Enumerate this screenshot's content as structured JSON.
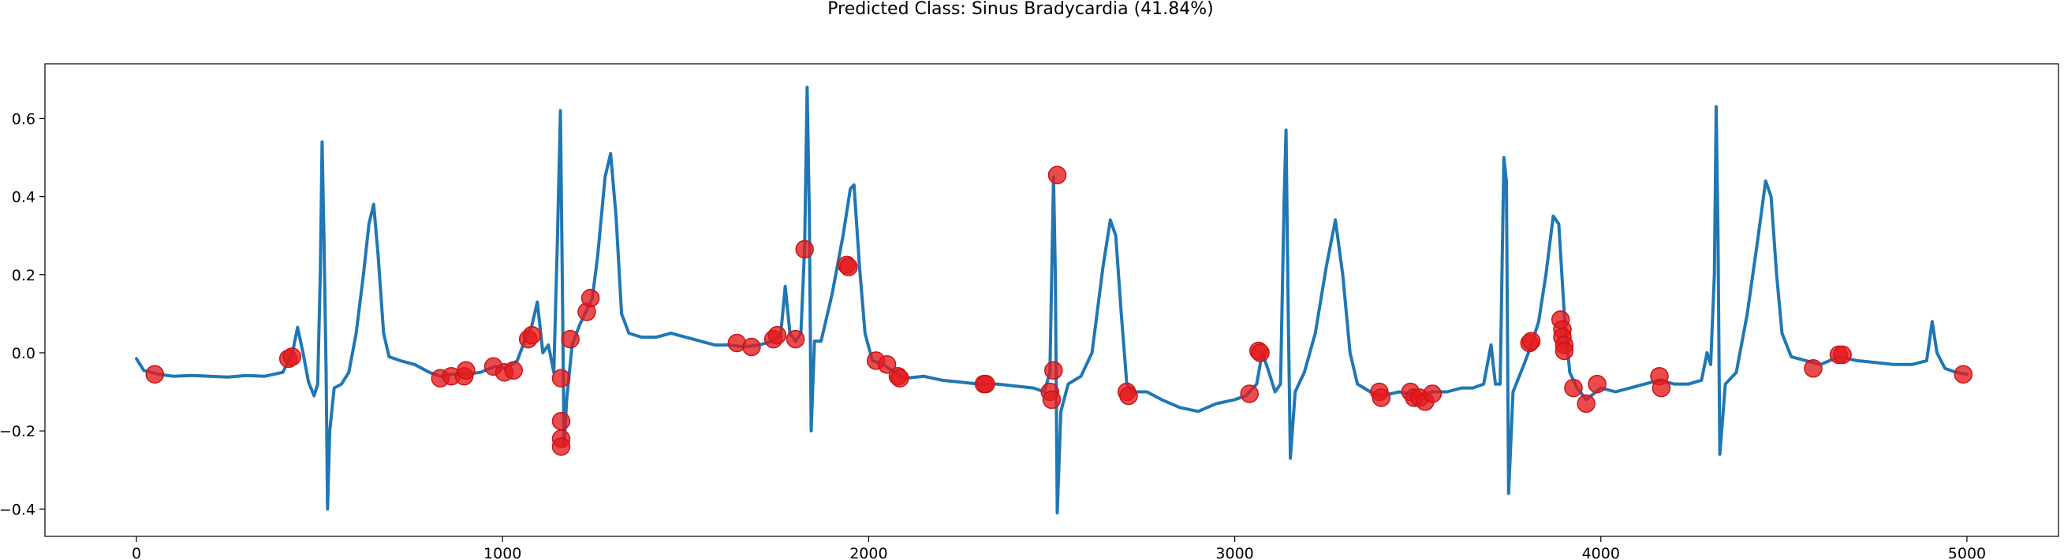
{
  "chart_data": {
    "type": "line",
    "title": "Predicted Class: Sinus Bradycardia (41.84%)",
    "xlabel": "",
    "ylabel": "",
    "xlim": [
      -250,
      5250
    ],
    "ylim": [
      -0.47,
      0.74
    ],
    "x_ticks": [
      0,
      1000,
      2000,
      3000,
      4000,
      5000
    ],
    "y_ticks": [
      -0.4,
      -0.2,
      0.0,
      0.2,
      0.4,
      0.6
    ],
    "grid": false,
    "series": [
      {
        "style": "line",
        "color": "#1f77b4",
        "points": [
          [
            0,
            -0.015
          ],
          [
            20,
            -0.045
          ],
          [
            60,
            -0.055
          ],
          [
            100,
            -0.06
          ],
          [
            150,
            -0.058
          ],
          [
            200,
            -0.06
          ],
          [
            250,
            -0.062
          ],
          [
            300,
            -0.058
          ],
          [
            350,
            -0.06
          ],
          [
            400,
            -0.05
          ],
          [
            410,
            -0.03
          ],
          [
            425,
            -0.005
          ],
          [
            440,
            0.065
          ],
          [
            455,
            0.0
          ],
          [
            470,
            -0.075
          ],
          [
            485,
            -0.11
          ],
          [
            495,
            -0.08
          ],
          [
            502,
            0.2
          ],
          [
            507,
            0.54
          ],
          [
            512,
            0.3
          ],
          [
            518,
            -0.05
          ],
          [
            522,
            -0.4
          ],
          [
            528,
            -0.2
          ],
          [
            540,
            -0.09
          ],
          [
            560,
            -0.08
          ],
          [
            580,
            -0.05
          ],
          [
            600,
            0.05
          ],
          [
            620,
            0.2
          ],
          [
            635,
            0.33
          ],
          [
            648,
            0.38
          ],
          [
            660,
            0.25
          ],
          [
            675,
            0.05
          ],
          [
            690,
            -0.01
          ],
          [
            720,
            -0.02
          ],
          [
            760,
            -0.03
          ],
          [
            800,
            -0.05
          ],
          [
            830,
            -0.06
          ],
          [
            860,
            -0.055
          ],
          [
            900,
            -0.055
          ],
          [
            940,
            -0.05
          ],
          [
            980,
            -0.035
          ],
          [
            1010,
            -0.04
          ],
          [
            1040,
            -0.02
          ],
          [
            1060,
            0.03
          ],
          [
            1080,
            0.07
          ],
          [
            1095,
            0.13
          ],
          [
            1110,
            0.0
          ],
          [
            1125,
            0.02
          ],
          [
            1140,
            -0.05
          ],
          [
            1150,
            0.3
          ],
          [
            1158,
            0.62
          ],
          [
            1163,
            0.2
          ],
          [
            1168,
            -0.24
          ],
          [
            1175,
            -0.12
          ],
          [
            1190,
            0.02
          ],
          [
            1210,
            0.07
          ],
          [
            1230,
            0.11
          ],
          [
            1245,
            0.14
          ],
          [
            1260,
            0.25
          ],
          [
            1280,
            0.45
          ],
          [
            1295,
            0.51
          ],
          [
            1310,
            0.35
          ],
          [
            1325,
            0.1
          ],
          [
            1345,
            0.05
          ],
          [
            1380,
            0.04
          ],
          [
            1420,
            0.04
          ],
          [
            1460,
            0.05
          ],
          [
            1500,
            0.04
          ],
          [
            1540,
            0.03
          ],
          [
            1580,
            0.02
          ],
          [
            1620,
            0.02
          ],
          [
            1660,
            0.015
          ],
          [
            1700,
            0.02
          ],
          [
            1740,
            0.03
          ],
          [
            1760,
            0.05
          ],
          [
            1772,
            0.17
          ],
          [
            1785,
            0.05
          ],
          [
            1800,
            0.03
          ],
          [
            1815,
            0.05
          ],
          [
            1825,
            0.27
          ],
          [
            1832,
            0.68
          ],
          [
            1838,
            0.35
          ],
          [
            1843,
            -0.2
          ],
          [
            1852,
            0.03
          ],
          [
            1870,
            0.03
          ],
          [
            1900,
            0.15
          ],
          [
            1930,
            0.3
          ],
          [
            1950,
            0.42
          ],
          [
            1960,
            0.43
          ],
          [
            1975,
            0.22
          ],
          [
            1990,
            0.05
          ],
          [
            2010,
            -0.02
          ],
          [
            2040,
            -0.03
          ],
          [
            2070,
            -0.05
          ],
          [
            2100,
            -0.065
          ],
          [
            2150,
            -0.06
          ],
          [
            2200,
            -0.07
          ],
          [
            2250,
            -0.075
          ],
          [
            2300,
            -0.08
          ],
          [
            2350,
            -0.08
          ],
          [
            2400,
            -0.085
          ],
          [
            2450,
            -0.09
          ],
          [
            2480,
            -0.1
          ],
          [
            2495,
            -0.05
          ],
          [
            2505,
            0.45
          ],
          [
            2510,
            0.2
          ],
          [
            2515,
            -0.41
          ],
          [
            2525,
            -0.15
          ],
          [
            2545,
            -0.08
          ],
          [
            2580,
            -0.06
          ],
          [
            2610,
            0.0
          ],
          [
            2640,
            0.22
          ],
          [
            2660,
            0.34
          ],
          [
            2675,
            0.3
          ],
          [
            2690,
            0.1
          ],
          [
            2705,
            -0.08
          ],
          [
            2720,
            -0.1
          ],
          [
            2760,
            -0.1
          ],
          [
            2800,
            -0.12
          ],
          [
            2850,
            -0.14
          ],
          [
            2900,
            -0.15
          ],
          [
            2950,
            -0.13
          ],
          [
            3000,
            -0.12
          ],
          [
            3030,
            -0.11
          ],
          [
            3060,
            -0.08
          ],
          [
            3075,
            0.0
          ],
          [
            3090,
            -0.04
          ],
          [
            3110,
            -0.1
          ],
          [
            3125,
            -0.08
          ],
          [
            3135,
            0.4
          ],
          [
            3140,
            0.57
          ],
          [
            3146,
            0.1
          ],
          [
            3152,
            -0.27
          ],
          [
            3165,
            -0.1
          ],
          [
            3190,
            -0.05
          ],
          [
            3220,
            0.05
          ],
          [
            3250,
            0.22
          ],
          [
            3275,
            0.34
          ],
          [
            3295,
            0.2
          ],
          [
            3315,
            0.0
          ],
          [
            3335,
            -0.08
          ],
          [
            3370,
            -0.1
          ],
          [
            3400,
            -0.11
          ],
          [
            3450,
            -0.1
          ],
          [
            3500,
            -0.11
          ],
          [
            3540,
            -0.1
          ],
          [
            3580,
            -0.1
          ],
          [
            3620,
            -0.09
          ],
          [
            3650,
            -0.09
          ],
          [
            3680,
            -0.08
          ],
          [
            3700,
            0.02
          ],
          [
            3712,
            -0.08
          ],
          [
            3725,
            -0.08
          ],
          [
            3735,
            0.5
          ],
          [
            3742,
            0.44
          ],
          [
            3748,
            -0.36
          ],
          [
            3760,
            -0.1
          ],
          [
            3790,
            -0.03
          ],
          [
            3810,
            0.02
          ],
          [
            3830,
            0.08
          ],
          [
            3850,
            0.2
          ],
          [
            3870,
            0.35
          ],
          [
            3885,
            0.33
          ],
          [
            3900,
            0.1
          ],
          [
            3915,
            -0.05
          ],
          [
            3935,
            -0.09
          ],
          [
            3960,
            -0.12
          ],
          [
            4000,
            -0.09
          ],
          [
            4040,
            -0.1
          ],
          [
            4080,
            -0.09
          ],
          [
            4120,
            -0.08
          ],
          [
            4160,
            -0.07
          ],
          [
            4200,
            -0.08
          ],
          [
            4240,
            -0.08
          ],
          [
            4275,
            -0.07
          ],
          [
            4290,
            0.0
          ],
          [
            4300,
            -0.03
          ],
          [
            4310,
            0.2
          ],
          [
            4315,
            0.63
          ],
          [
            4320,
            0.3
          ],
          [
            4325,
            -0.26
          ],
          [
            4340,
            -0.08
          ],
          [
            4370,
            -0.05
          ],
          [
            4400,
            0.1
          ],
          [
            4430,
            0.3
          ],
          [
            4450,
            0.44
          ],
          [
            4465,
            0.4
          ],
          [
            4480,
            0.2
          ],
          [
            4495,
            0.05
          ],
          [
            4520,
            -0.01
          ],
          [
            4560,
            -0.02
          ],
          [
            4600,
            -0.03
          ],
          [
            4650,
            -0.01
          ],
          [
            4700,
            -0.02
          ],
          [
            4750,
            -0.025
          ],
          [
            4800,
            -0.03
          ],
          [
            4850,
            -0.03
          ],
          [
            4890,
            -0.02
          ],
          [
            4905,
            0.08
          ],
          [
            4918,
            0.0
          ],
          [
            4940,
            -0.04
          ],
          [
            4970,
            -0.05
          ],
          [
            5000,
            -0.055
          ]
        ]
      },
      {
        "style": "scatter",
        "color": "#e41a1c",
        "points": [
          [
            50,
            -0.055
          ],
          [
            415,
            -0.015
          ],
          [
            425,
            -0.01
          ],
          [
            830,
            -0.065
          ],
          [
            860,
            -0.06
          ],
          [
            895,
            -0.06
          ],
          [
            900,
            -0.045
          ],
          [
            975,
            -0.035
          ],
          [
            1005,
            -0.05
          ],
          [
            1030,
            -0.045
          ],
          [
            1070,
            0.035
          ],
          [
            1080,
            0.045
          ],
          [
            1160,
            -0.065
          ],
          [
            1160,
            -0.175
          ],
          [
            1160,
            -0.22
          ],
          [
            1160,
            -0.24
          ],
          [
            1185,
            0.035
          ],
          [
            1230,
            0.105
          ],
          [
            1240,
            0.14
          ],
          [
            1640,
            0.025
          ],
          [
            1680,
            0.015
          ],
          [
            1740,
            0.035
          ],
          [
            1750,
            0.045
          ],
          [
            1800,
            0.035
          ],
          [
            1825,
            0.265
          ],
          [
            1940,
            0.225
          ],
          [
            1945,
            0.22
          ],
          [
            2020,
            -0.02
          ],
          [
            2050,
            -0.03
          ],
          [
            2080,
            -0.06
          ],
          [
            2085,
            -0.065
          ],
          [
            2315,
            -0.08
          ],
          [
            2320,
            -0.08
          ],
          [
            2495,
            -0.1
          ],
          [
            2500,
            -0.12
          ],
          [
            2505,
            -0.045
          ],
          [
            2515,
            0.455
          ],
          [
            2705,
            -0.1
          ],
          [
            2710,
            -0.11
          ],
          [
            3040,
            -0.105
          ],
          [
            3065,
            0.005
          ],
          [
            3070,
            0.0
          ],
          [
            3395,
            -0.1
          ],
          [
            3400,
            -0.115
          ],
          [
            3480,
            -0.1
          ],
          [
            3490,
            -0.115
          ],
          [
            3505,
            -0.115
          ],
          [
            3520,
            -0.125
          ],
          [
            3540,
            -0.105
          ],
          [
            3805,
            0.025
          ],
          [
            3810,
            0.03
          ],
          [
            3890,
            0.085
          ],
          [
            3895,
            0.06
          ],
          [
            3895,
            0.04
          ],
          [
            3900,
            0.02
          ],
          [
            3900,
            0.005
          ],
          [
            3925,
            -0.09
          ],
          [
            3960,
            -0.13
          ],
          [
            3990,
            -0.08
          ],
          [
            4160,
            -0.06
          ],
          [
            4165,
            -0.09
          ],
          [
            4580,
            -0.04
          ],
          [
            4650,
            -0.005
          ],
          [
            4660,
            -0.005
          ],
          [
            4990,
            -0.055
          ]
        ]
      }
    ]
  }
}
